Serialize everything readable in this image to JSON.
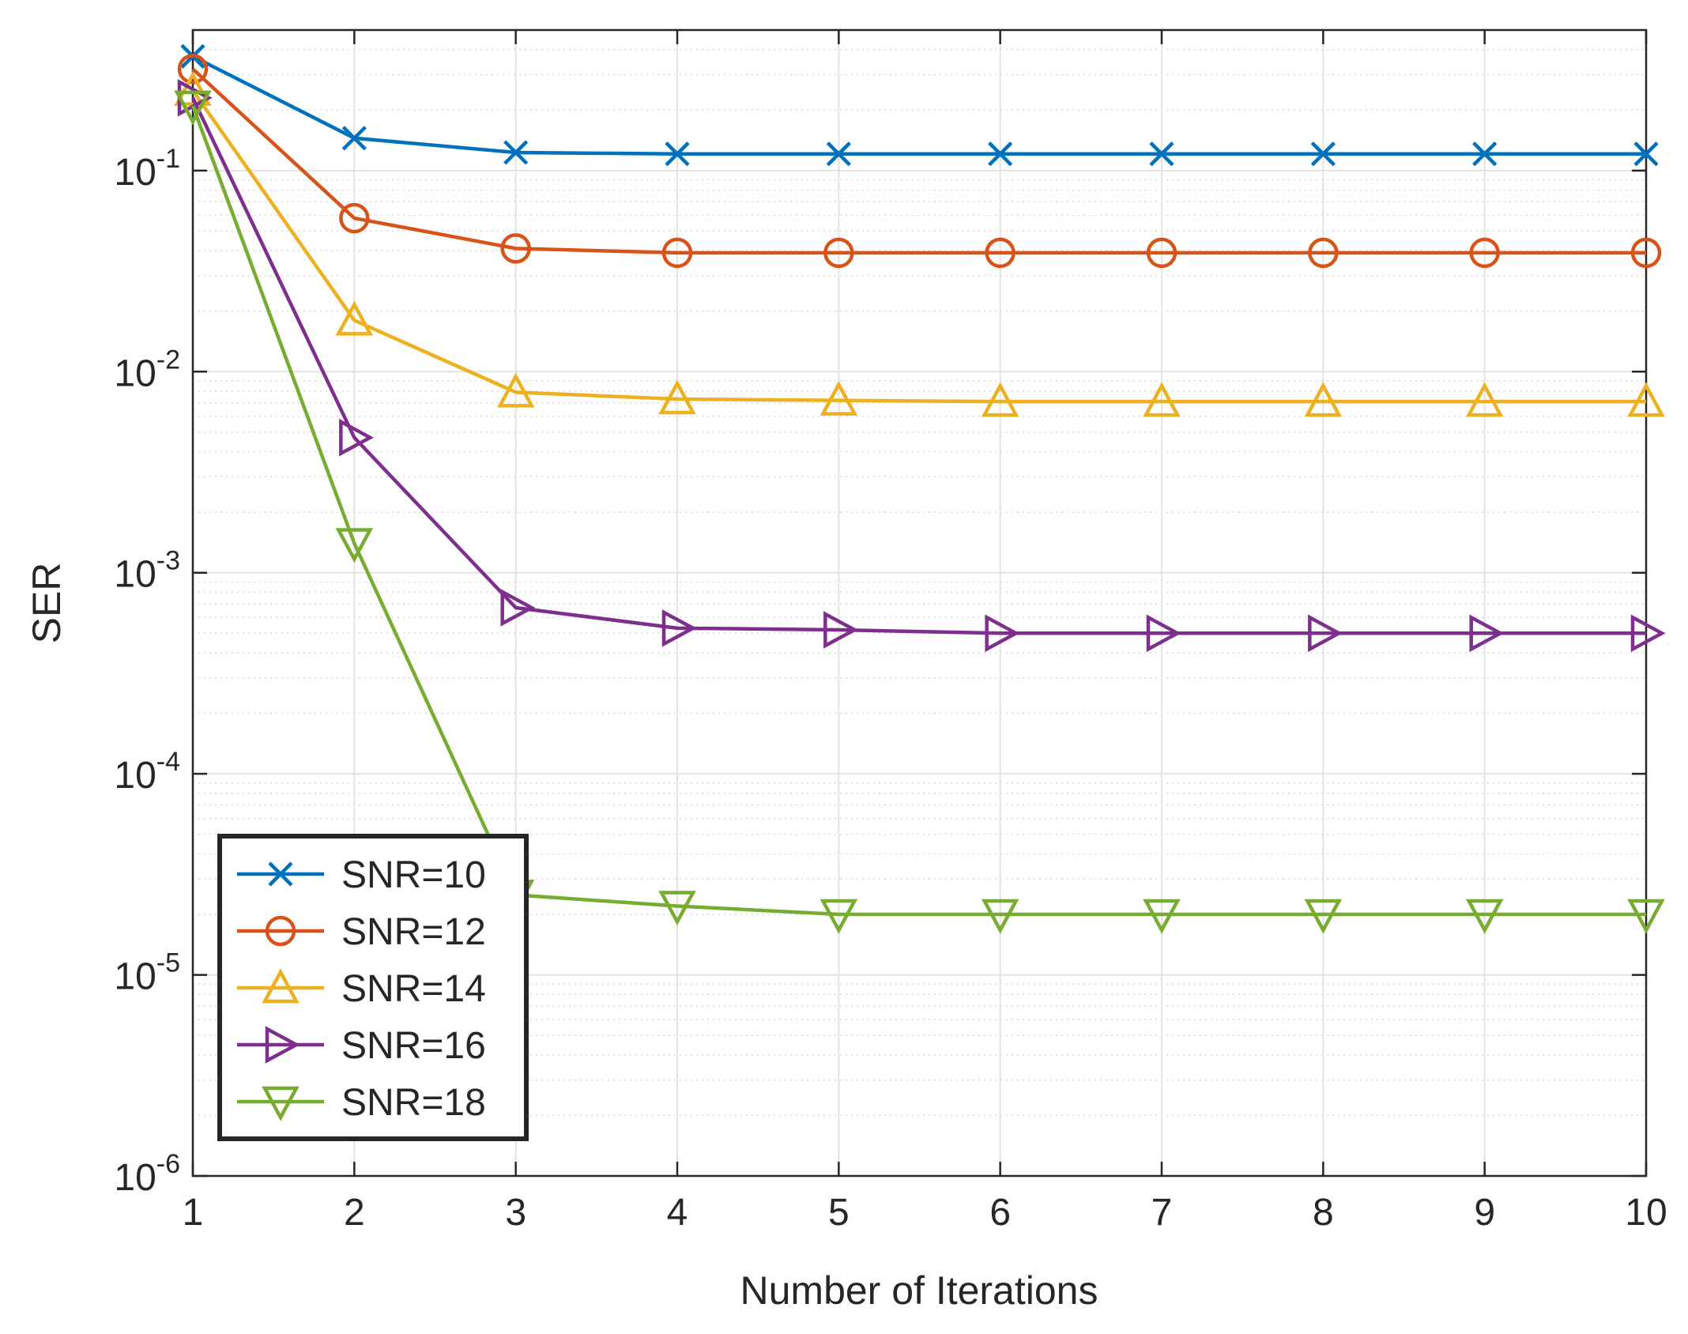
{
  "chart_data": {
    "type": "line",
    "title": "",
    "xlabel": "Number of Iterations",
    "ylabel": "SER",
    "yscale": "log",
    "xlim": [
      1,
      10
    ],
    "ylim": [
      1e-06,
      0.5
    ],
    "grid": true,
    "minor_grid": true,
    "legend_location": "bottom-left",
    "x": [
      1,
      2,
      3,
      4,
      5,
      6,
      7,
      8,
      9,
      10
    ],
    "x_tick_labels": [
      "1",
      "2",
      "3",
      "4",
      "5",
      "6",
      "7",
      "8",
      "9",
      "10"
    ],
    "y_ticks": [
      {
        "base": "10",
        "exp": "-6"
      },
      {
        "base": "10",
        "exp": "-5"
      },
      {
        "base": "10",
        "exp": "-4"
      },
      {
        "base": "10",
        "exp": "-3"
      },
      {
        "base": "10",
        "exp": "-2"
      },
      {
        "base": "10",
        "exp": "-1"
      }
    ],
    "series": [
      {
        "name": "SNR=10",
        "color": "#0072BD",
        "marker": "x",
        "values": [
          0.37,
          0.145,
          0.123,
          0.121,
          0.121,
          0.121,
          0.121,
          0.121,
          0.121,
          0.121
        ]
      },
      {
        "name": "SNR=12",
        "color": "#D95319",
        "marker": "circle",
        "values": [
          0.32,
          0.058,
          0.041,
          0.039,
          0.039,
          0.039,
          0.039,
          0.039,
          0.039,
          0.039
        ]
      },
      {
        "name": "SNR=14",
        "color": "#EDB120",
        "marker": "triangle-up",
        "values": [
          0.25,
          0.018,
          0.0079,
          0.0073,
          0.0072,
          0.0071,
          0.0071,
          0.0071,
          0.0071,
          0.0071
        ]
      },
      {
        "name": "SNR=16",
        "color": "#7E2F8E",
        "marker": "triangle-right",
        "values": [
          0.23,
          0.0047,
          0.00067,
          0.00053,
          0.00052,
          0.0005,
          0.0005,
          0.0005,
          0.0005,
          0.0005
        ]
      },
      {
        "name": "SNR=18",
        "color": "#77AC30",
        "marker": "triangle-down",
        "values": [
          0.21,
          0.0014,
          2.5e-05,
          2.2e-05,
          2e-05,
          2e-05,
          2e-05,
          2e-05,
          2e-05,
          2e-05
        ]
      }
    ]
  }
}
